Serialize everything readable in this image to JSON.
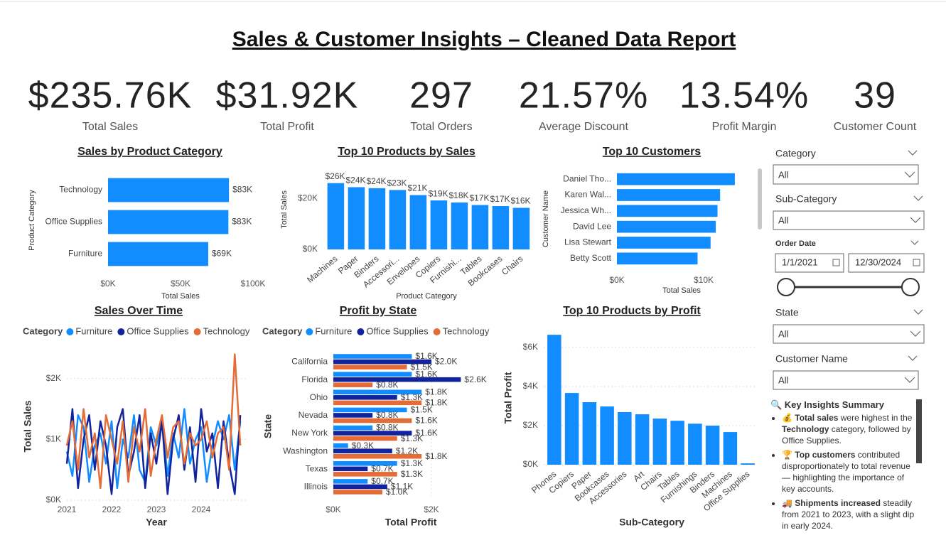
{
  "title": "Sales & Customer Insights – Cleaned Data Report",
  "kpis": [
    {
      "value": "$235.76K",
      "label": "Total Sales"
    },
    {
      "value": "$31.92K",
      "label": "Total Profit"
    },
    {
      "value": "297",
      "label": "Total Orders"
    },
    {
      "value": "21.57%",
      "label": "Average Discount"
    },
    {
      "value": "13.54%",
      "label": "Profit Margin"
    },
    {
      "value": "39",
      "label": "Customer Count"
    }
  ],
  "chart_data": [
    {
      "type": "bar",
      "orientation": "horizontal",
      "title": "Sales by Product Category",
      "xlabel": "Total Sales",
      "ylabel": "Product Category",
      "categories": [
        "Technology",
        "Office Supplies",
        "Furniture"
      ],
      "values": [
        83400,
        83000,
        69100
      ],
      "value_labels": [
        "$83K",
        "$83K",
        "$69K"
      ],
      "color": "#118DFF",
      "xlim": [
        0,
        100000
      ],
      "xticks": [
        {
          "value": 0,
          "label": "$0K"
        },
        {
          "value": 50000,
          "label": "$50K"
        },
        {
          "value": 100000,
          "label": "$100K"
        }
      ],
      "grid": false
    },
    {
      "type": "bar",
      "orientation": "vertical",
      "title": "Top 10 Products by Sales",
      "xlabel": "Product Category",
      "ylabel": "Total Sales",
      "categories": [
        "Machines",
        "Paper",
        "Binders",
        "Accessori...",
        "Envelopes",
        "Copiers",
        "Furnishi...",
        "Tables",
        "Bookcases",
        "Chairs"
      ],
      "values": [
        26000,
        24400,
        24000,
        23300,
        21300,
        19200,
        18400,
        17400,
        17000,
        16300
      ],
      "value_labels": [
        "$26K",
        "$24K",
        "$24K",
        "$23K",
        "$21K",
        "$19K",
        "$18K",
        "$17K",
        "$17K",
        "$16K"
      ],
      "color": "#118DFF",
      "ylim": [
        0,
        28000
      ],
      "yticks": [
        {
          "value": 0,
          "label": "$0K"
        },
        {
          "value": 20000,
          "label": "$20K"
        }
      ],
      "grid": false
    },
    {
      "type": "bar",
      "orientation": "horizontal",
      "title": "Top 10 Customers",
      "xlabel": "Total Sales",
      "ylabel": "Customer Name",
      "categories": [
        "Daniel Tho...",
        "Karen Wal...",
        "Jessica Wh...",
        "David Lee",
        "Lisa Stewart",
        "Betty Scott"
      ],
      "values": [
        13600,
        11900,
        11600,
        11400,
        10800,
        9300
      ],
      "color": "#118DFF",
      "xlim": [
        0,
        15000
      ],
      "xticks": [
        {
          "value": 0,
          "label": "$0K"
        },
        {
          "value": 10000,
          "label": "$10K"
        }
      ],
      "grid": false
    },
    {
      "type": "line",
      "title": "Sales Over Time",
      "xlabel": "Year",
      "ylabel": "Total Sales",
      "legend_title": "Category",
      "x": [
        2021,
        2021.125,
        2021.25,
        2021.375,
        2021.5,
        2021.625,
        2021.75,
        2021.875,
        2022,
        2022.125,
        2022.25,
        2022.375,
        2022.5,
        2022.625,
        2022.75,
        2022.875,
        2023,
        2023.125,
        2023.25,
        2023.375,
        2023.5,
        2023.625,
        2023.75,
        2023.875,
        2024,
        2024.125,
        2024.25,
        2024.375,
        2024.5,
        2024.625,
        2024.75,
        2024.875
      ],
      "series": [
        {
          "name": "Furniture",
          "color": "#118DFF",
          "values": [
            800,
            400,
            1400,
            1200,
            300,
            900,
            1100,
            600,
            1300,
            200,
            1000,
            700,
            1400,
            500,
            300,
            1200,
            900,
            1300,
            400,
            1100,
            700,
            1500,
            600,
            1000,
            1200,
            300,
            900,
            1300,
            1000,
            1400,
            500,
            1300
          ]
        },
        {
          "name": "Office Supplies",
          "color": "#12239E",
          "values": [
            600,
            1500,
            200,
            1000,
            1400,
            500,
            1300,
            900,
            100,
            1200,
            1500,
            400,
            800,
            1400,
            200,
            1100,
            600,
            1300,
            100,
            1000,
            1400,
            500,
            1200,
            300,
            1500,
            800,
            1100,
            200,
            1300,
            600,
            100,
            1400
          ]
        },
        {
          "name": "Technology",
          "color": "#E66C37",
          "values": [
            900,
            1300,
            500,
            1500,
            700,
            1100,
            200,
            1400,
            1000,
            600,
            1300,
            300,
            1200,
            800,
            1500,
            400,
            1000,
            1400,
            700,
            1200,
            1300,
            600,
            1100,
            900,
            1000,
            1300,
            700,
            1100,
            1200,
            500,
            2400,
            900
          ]
        }
      ],
      "xlim": [
        2021,
        2025
      ],
      "xticks": [
        2021,
        2022,
        2023,
        2024
      ],
      "ylim": [
        0,
        2500
      ],
      "yticks": [
        {
          "value": 0,
          "label": "$0K"
        },
        {
          "value": 1000,
          "label": "$1K"
        },
        {
          "value": 2000,
          "label": "$2K"
        }
      ],
      "grid": true
    },
    {
      "type": "bar",
      "orientation": "horizontal",
      "title": "Profit by State",
      "xlabel": "Total Profit",
      "ylabel": "State",
      "legend_title": "Category",
      "categories": [
        "California",
        "Florida",
        "Ohio",
        "Nevada",
        "New York",
        "Washington",
        "Texas",
        "Illinois"
      ],
      "series": [
        {
          "name": "Furniture",
          "color": "#118DFF",
          "values": [
            1600,
            1600,
            1800,
            1500,
            800,
            300,
            1300,
            700
          ],
          "value_labels": [
            "$1.6K",
            "$1.6K",
            "$1.8K",
            "$1.5K",
            "$0.8K",
            "$0.3K",
            "$1.3K",
            "$0.7K"
          ]
        },
        {
          "name": "Office Supplies",
          "color": "#12239E",
          "values": [
            2000,
            2600,
            1300,
            800,
            1600,
            1200,
            700,
            1100
          ],
          "value_labels": [
            "$2.0K",
            "$2.6K",
            "$1.3K",
            "$0.8K",
            "$1.6K",
            "$1.2K",
            "$0.7K",
            "$1.1K"
          ]
        },
        {
          "name": "Technology",
          "color": "#E66C37",
          "values": [
            1500,
            800,
            1800,
            1600,
            1300,
            1800,
            1300,
            1000
          ],
          "value_labels": [
            "$1.5K",
            "$0.8K",
            "$1.8K",
            "$1.6K",
            "$1.3K",
            "$1.8K",
            "$1.3K",
            "$1.0K"
          ]
        }
      ],
      "xlim": [
        0,
        3000
      ],
      "xticks": [
        {
          "value": 0,
          "label": "$0K"
        },
        {
          "value": 2000,
          "label": "$2K"
        }
      ],
      "grid": true
    },
    {
      "type": "bar",
      "orientation": "vertical",
      "title": "Top 10 Products by Profit",
      "xlabel": "Sub-Category",
      "ylabel": "Total Profit",
      "categories": [
        "Phones",
        "Copiers",
        "Paper",
        "Bookcases",
        "Accessories",
        "Art",
        "Chairs",
        "Tables",
        "Furnishings",
        "Binders",
        "Machines",
        "Office Supplies"
      ],
      "values": [
        6650,
        3670,
        3200,
        2980,
        2690,
        2580,
        2360,
        2250,
        2100,
        2000,
        1670,
        70
      ],
      "color": "#118DFF",
      "ylim": [
        0,
        7000
      ],
      "yticks": [
        {
          "value": 0,
          "label": "$0K"
        },
        {
          "value": 2000,
          "label": "$2K"
        },
        {
          "value": 4000,
          "label": "$4K"
        },
        {
          "value": 6000,
          "label": "$6K"
        }
      ],
      "grid": true
    }
  ],
  "filters": {
    "category": {
      "label": "Category",
      "value": "All"
    },
    "sub_category": {
      "label": "Sub-Category",
      "value": "All"
    },
    "order_date": {
      "label": "Order Date",
      "start": "1/1/2021",
      "end": "12/30/2024"
    },
    "state": {
      "label": "State",
      "value": "All"
    },
    "customer_name": {
      "label": "Customer Name",
      "value": "All"
    }
  },
  "insights": {
    "title": "🔍 Key Insights Summary",
    "items": [
      [
        {
          "text": "💰 "
        },
        {
          "text": "Total sales",
          "bold": true
        },
        {
          "text": " were highest in the "
        },
        {
          "text": "Technology",
          "bold": true
        },
        {
          "text": " category, followed by Office Supplies."
        }
      ],
      [
        {
          "text": "🏆 "
        },
        {
          "text": "Top customers",
          "bold": true
        },
        {
          "text": " contributed disproportionately to total revenue — highlighting the importance of key accounts."
        }
      ],
      [
        {
          "text": "🚚 "
        },
        {
          "text": "Shipments increased",
          "bold": true
        },
        {
          "text": " steadily from 2021 to 2023, with a slight dip in early 2024."
        }
      ]
    ]
  }
}
